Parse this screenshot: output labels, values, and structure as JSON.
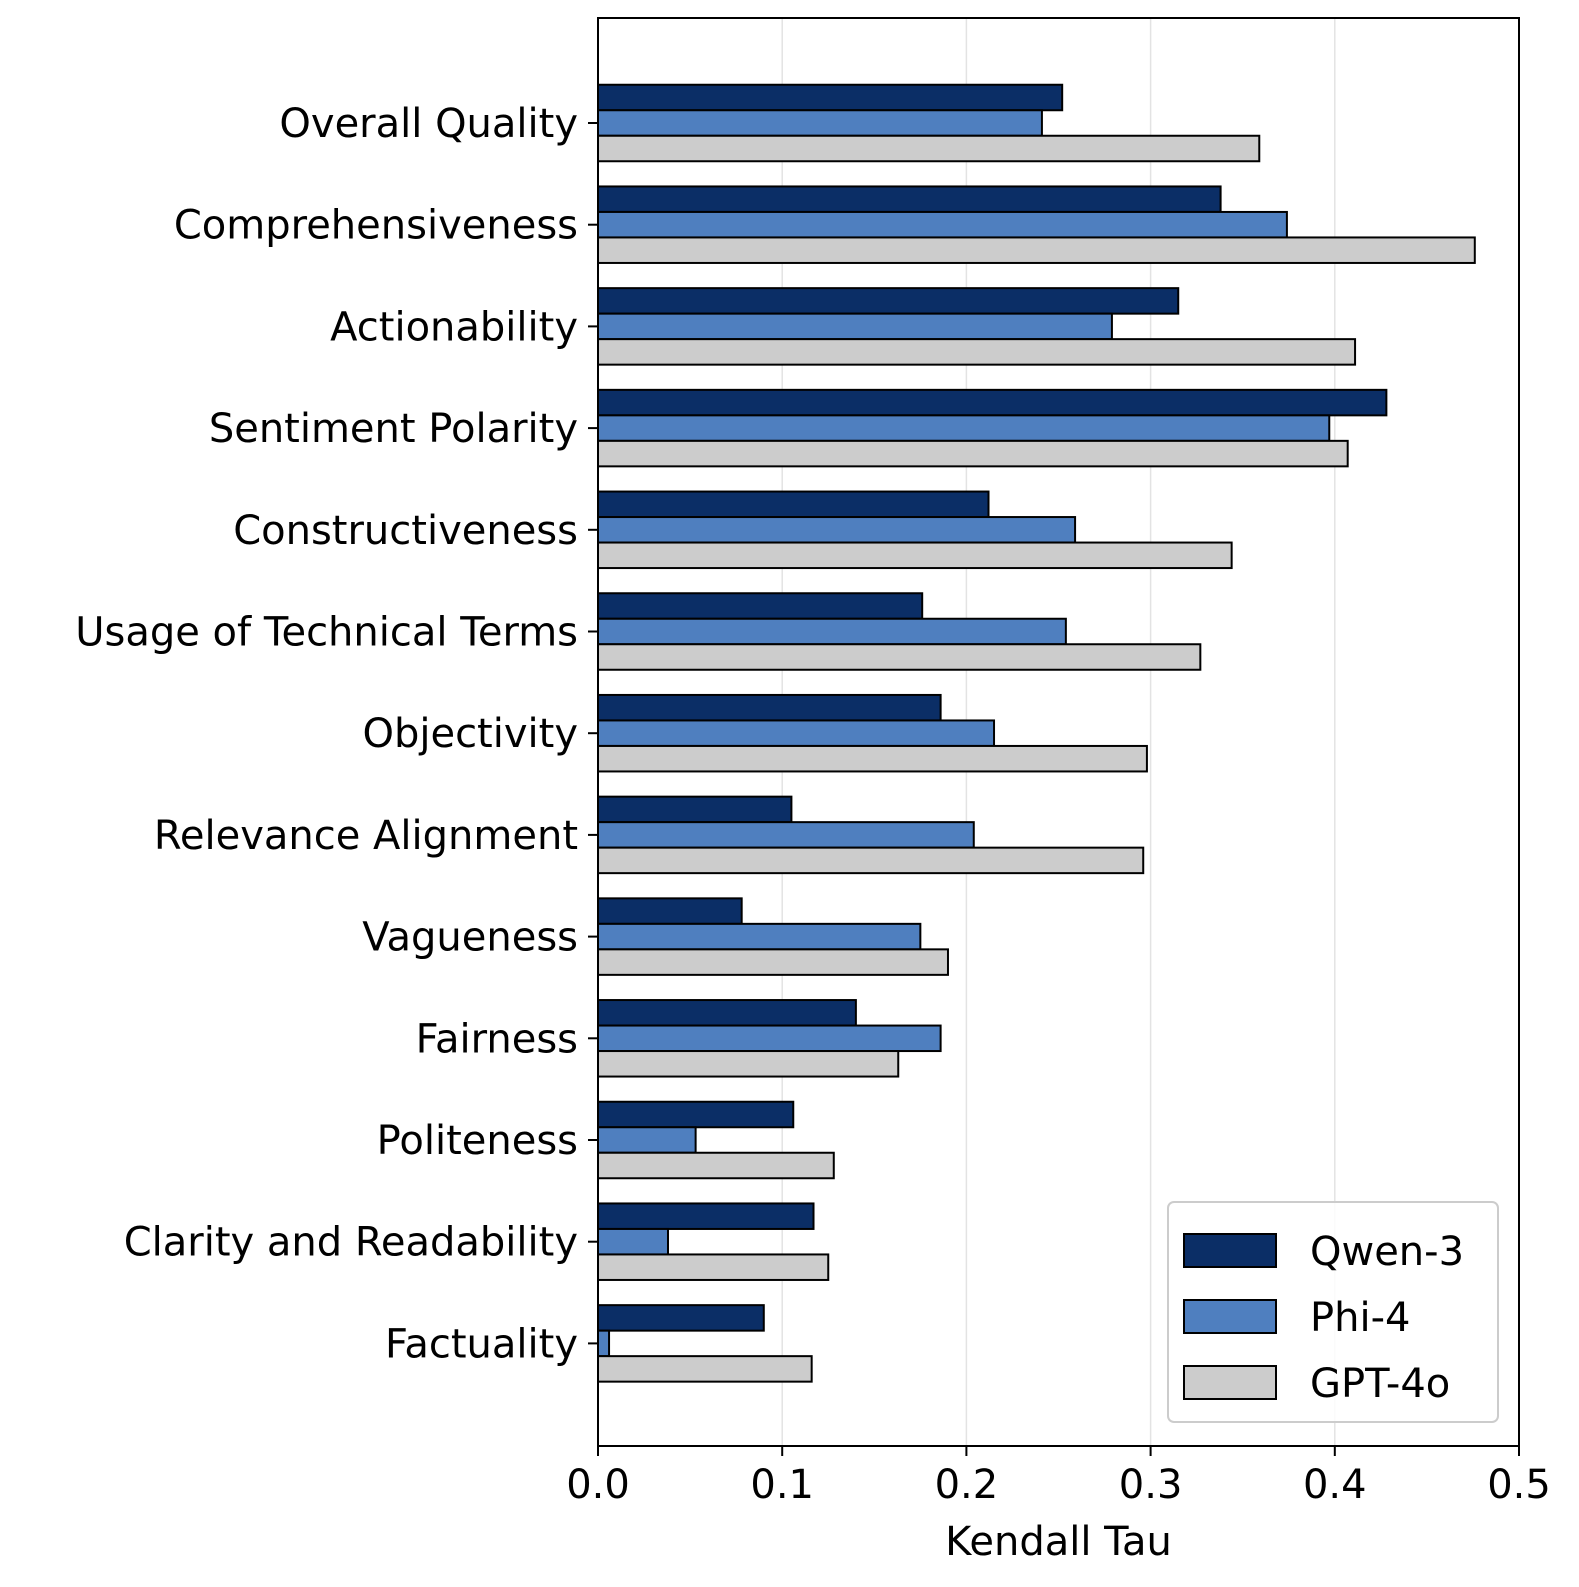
{
  "chart_data": {
    "type": "bar",
    "orientation": "horizontal",
    "categories": [
      "Overall Quality",
      "Comprehensiveness",
      "Actionability",
      "Sentiment Polarity",
      "Constructiveness",
      "Usage of Technical Terms",
      "Objectivity",
      "Relevance Alignment",
      "Vagueness",
      "Fairness",
      "Politeness",
      "Clarity and Readability",
      "Factuality"
    ],
    "series": [
      {
        "name": "Qwen-3",
        "color": "#0b2e66",
        "values": [
          0.252,
          0.338,
          0.315,
          0.428,
          0.212,
          0.176,
          0.186,
          0.105,
          0.078,
          0.14,
          0.106,
          0.117,
          0.09
        ]
      },
      {
        "name": "Phi-4",
        "color": "#4f7fbf",
        "values": [
          0.241,
          0.374,
          0.279,
          0.397,
          0.259,
          0.254,
          0.215,
          0.204,
          0.175,
          0.186,
          0.053,
          0.038,
          0.006
        ]
      },
      {
        "name": "GPT-4o",
        "color": "#cccccc",
        "values": [
          0.359,
          0.476,
          0.411,
          0.407,
          0.344,
          0.327,
          0.298,
          0.296,
          0.19,
          0.163,
          0.128,
          0.125,
          0.116
        ]
      }
    ],
    "xlabel": "Kendall Tau",
    "ylabel": "",
    "xlim": [
      0.0,
      0.5
    ],
    "xticks": [
      "0.0",
      "0.1",
      "0.2",
      "0.3",
      "0.4",
      "0.5"
    ],
    "grid": "vertical",
    "legend_position": "bottom-right"
  }
}
